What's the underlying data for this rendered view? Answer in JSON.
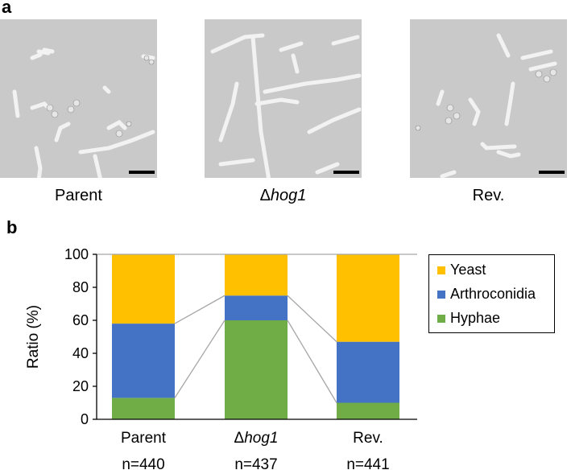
{
  "panel_a": {
    "letter": "a",
    "images": [
      {
        "label": "Parent"
      },
      {
        "label_prefix": "Δ",
        "label_italic": "hog1"
      },
      {
        "label": "Rev."
      }
    ]
  },
  "panel_b": {
    "letter": "b"
  },
  "colors": {
    "yeast": "#ffc000",
    "arthroconidia": "#4472c4",
    "hyphae": "#70ad47",
    "connector": "#a6a6a6"
  },
  "chart_data": {
    "type": "bar",
    "stacked": true,
    "categories": [
      "Parent",
      "Δhog1",
      "Rev."
    ],
    "category_italic_part": [
      null,
      "hog1",
      null
    ],
    "n_labels": [
      "n=440",
      "n=437",
      "n=441"
    ],
    "series": [
      {
        "name": "Hyphae",
        "values": [
          13,
          60,
          10
        ]
      },
      {
        "name": "Arthroconidia",
        "values": [
          45,
          15,
          37
        ]
      },
      {
        "name": "Yeast",
        "values": [
          42,
          25,
          53
        ]
      }
    ],
    "ylabel": "Ratio (%)",
    "ylim": [
      0,
      100
    ],
    "yticks": [
      0,
      20,
      40,
      60,
      80,
      100
    ],
    "legend_order": [
      "Yeast",
      "Arthroconidia",
      "Hyphae"
    ],
    "legend_position": "right",
    "grid": false
  }
}
